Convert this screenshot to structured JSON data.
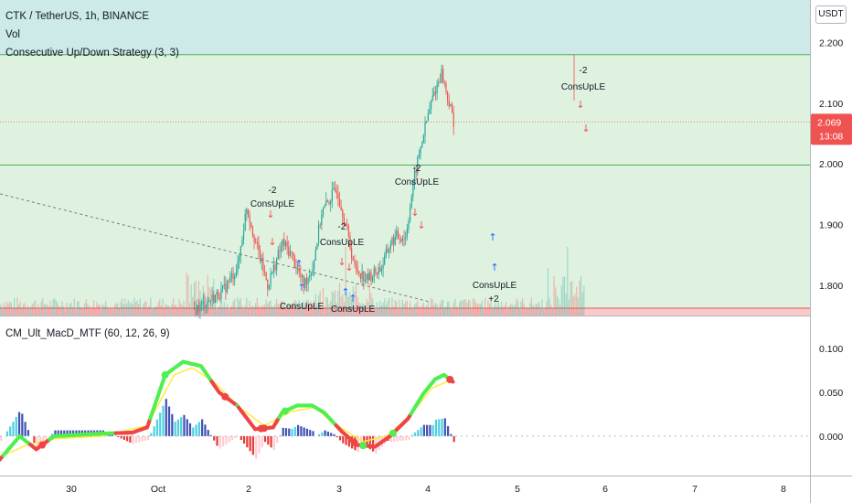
{
  "header": {
    "symbol_line": "CTK / TetherUS, 1h, BINANCE",
    "vol_label": "Vol",
    "strategy_label": "Consecutive Up/Down Strategy (3, 3)",
    "indicator_label": "CM_Ult_MacD_MTF (60, 12, 26, 9)"
  },
  "currency_badge": "USDT",
  "price_axis": {
    "ticks": [
      "2.200",
      "2.100",
      "2.000",
      "1.900",
      "1.800"
    ],
    "last_price": "2.069",
    "countdown": "13:08"
  },
  "macd_axis": {
    "ticks": [
      "0.100",
      "0.050",
      "0.000"
    ]
  },
  "time_axis": {
    "ticks": [
      "30",
      "Oct",
      "2",
      "3",
      "4",
      "5",
      "6",
      "7",
      "8"
    ]
  },
  "signals": [
    {
      "text": "-2",
      "kind": "count"
    },
    {
      "text": "ConsUpLE",
      "kind": "entry"
    },
    {
      "text": "-2",
      "kind": "count"
    },
    {
      "text": "ConsUpLE",
      "kind": "entry"
    },
    {
      "text": "ConsUpLE",
      "kind": "entry"
    },
    {
      "text": "ConsUpLE",
      "kind": "entry"
    },
    {
      "text": "-2",
      "kind": "count"
    },
    {
      "text": "ConsUpLE",
      "kind": "entry"
    },
    {
      "text": "ConsUpLE",
      "kind": "entry"
    },
    {
      "text": "+2",
      "kind": "count"
    },
    {
      "text": "-2",
      "kind": "count"
    },
    {
      "text": "ConsUpLE",
      "kind": "entry"
    }
  ],
  "colors": {
    "top_zone": "#cdeae8",
    "green_zone": "#dff2e0",
    "red_zone": "#f9caca",
    "bull_candle": "#26a69a",
    "bear_candle": "#ef5350",
    "macd_up": "#4eef4e",
    "macd_down": "#ef4444",
    "signal_line": "#ffeb3b",
    "hist_pos": "#3f51b5",
    "hist_pos_light": "#4dd0e1",
    "hist_neg": "#e53935",
    "hist_neg_light": "#ffcdd2",
    "last_price_tag": "#ef5350",
    "zone_line_green": "#4caf50",
    "zone_line_red": "#ef5350"
  },
  "chart_data": [
    {
      "type": "candlestick",
      "title": "CTK / TetherUS, 1h, BINANCE",
      "ylim": [
        1.75,
        2.27
      ],
      "zones": [
        {
          "from": 2.18,
          "to": 2.27,
          "color": "top"
        },
        {
          "from": 1.762,
          "to": 2.18,
          "color": "green"
        },
        {
          "from": 1.75,
          "to": 1.762,
          "color": "red"
        }
      ],
      "levels": [
        2.18,
        1.998,
        1.762
      ],
      "last": 2.069,
      "x_days": [
        0,
        1,
        2,
        3,
        4,
        5,
        6,
        7,
        8,
        9,
        10,
        11
      ],
      "x_labels": [
        "",
        "30",
        "",
        "Oct",
        "",
        "2",
        "3",
        "4",
        "5",
        "6",
        "7",
        "8"
      ],
      "anchors_hour_price": [
        [
          132,
          1.76
        ],
        [
          150,
          1.79
        ],
        [
          160,
          1.83
        ],
        [
          166,
          1.93
        ],
        [
          172,
          1.87
        ],
        [
          180,
          1.8
        ],
        [
          190,
          1.87
        ],
        [
          196,
          1.85
        ],
        [
          204,
          1.8
        ],
        [
          210,
          1.83
        ],
        [
          216,
          1.92
        ],
        [
          226,
          1.96
        ],
        [
          232,
          1.9
        ],
        [
          238,
          1.83
        ],
        [
          246,
          1.81
        ],
        [
          256,
          1.83
        ],
        [
          262,
          1.87
        ],
        [
          266,
          1.88
        ],
        [
          272,
          1.88
        ],
        [
          278,
          1.98
        ],
        [
          284,
          2.05
        ],
        [
          290,
          2.11
        ],
        [
          296,
          2.15
        ],
        [
          300,
          2.11
        ],
        [
          304,
          2.07
        ]
      ],
      "volume_overlay": true
    },
    {
      "type": "line",
      "title": "CM_Ult_MacD_MTF (60, 12, 26, 9)",
      "ylim": [
        -0.045,
        0.12
      ],
      "yticks": [
        0.1,
        0.05,
        0.0
      ],
      "macd_anchors_hour_value": [
        [
          0,
          -0.03
        ],
        [
          15,
          0.0
        ],
        [
          26,
          -0.015
        ],
        [
          38,
          0.0
        ],
        [
          70,
          0.003
        ],
        [
          90,
          0.004
        ],
        [
          100,
          0.01
        ],
        [
          112,
          0.07
        ],
        [
          124,
          0.085
        ],
        [
          136,
          0.08
        ],
        [
          148,
          0.05
        ],
        [
          160,
          0.035
        ],
        [
          172,
          0.008
        ],
        [
          184,
          0.01
        ],
        [
          190,
          0.027
        ],
        [
          200,
          0.035
        ],
        [
          210,
          0.035
        ],
        [
          218,
          0.027
        ],
        [
          230,
          0.005
        ],
        [
          240,
          -0.01
        ],
        [
          252,
          -0.012
        ],
        [
          262,
          0.0
        ],
        [
          274,
          0.02
        ],
        [
          284,
          0.048
        ],
        [
          292,
          0.065
        ],
        [
          298,
          0.07
        ],
        [
          304,
          0.062
        ]
      ],
      "signal_anchors_hour_value": [
        [
          0,
          -0.025
        ],
        [
          20,
          -0.01
        ],
        [
          38,
          -0.003
        ],
        [
          70,
          0.0
        ],
        [
          100,
          0.012
        ],
        [
          118,
          0.07
        ],
        [
          130,
          0.078
        ],
        [
          146,
          0.06
        ],
        [
          160,
          0.035
        ],
        [
          178,
          0.012
        ],
        [
          196,
          0.028
        ],
        [
          212,
          0.033
        ],
        [
          224,
          0.015
        ],
        [
          244,
          -0.006
        ],
        [
          260,
          0.0
        ],
        [
          276,
          0.025
        ],
        [
          290,
          0.055
        ],
        [
          304,
          0.065
        ]
      ],
      "histogram": true
    }
  ]
}
